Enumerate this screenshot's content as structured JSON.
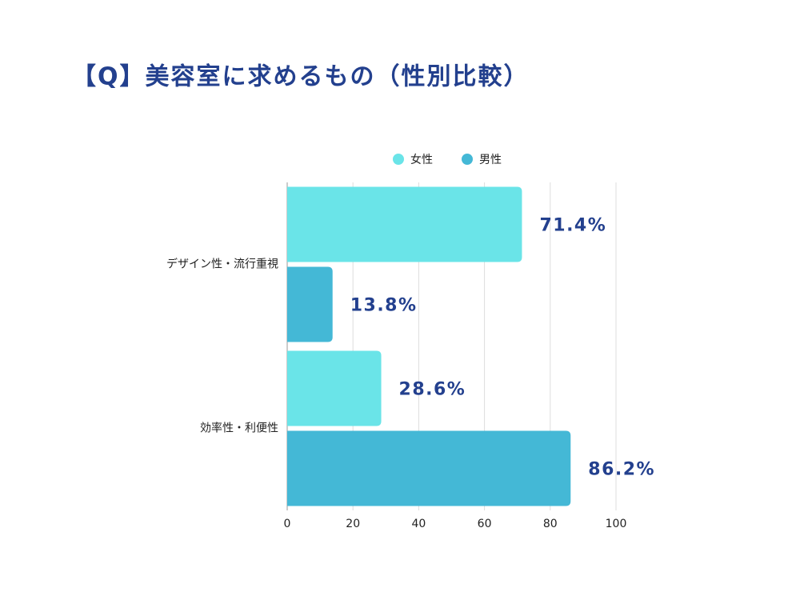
{
  "chart_data": {
    "type": "bar",
    "orientation": "horizontal",
    "title": "【Q】美容室に求めるもの（性別比較）",
    "categories": [
      "デザイン性・流行重視",
      "効率性・利便性"
    ],
    "series": [
      {
        "name": "女性",
        "color": "#6ae4e8",
        "values": [
          71.4,
          28.6
        ],
        "value_labels": [
          "71.4%",
          "28.6%"
        ]
      },
      {
        "name": "男性",
        "color": "#44b8d6",
        "values": [
          13.8,
          86.2
        ],
        "value_labels": [
          "13.8%",
          "86.2%"
        ]
      }
    ],
    "xlim": [
      0,
      100
    ],
    "xticks": [
      0,
      20,
      40,
      60,
      80,
      100
    ],
    "grid": true,
    "legend": "top"
  }
}
